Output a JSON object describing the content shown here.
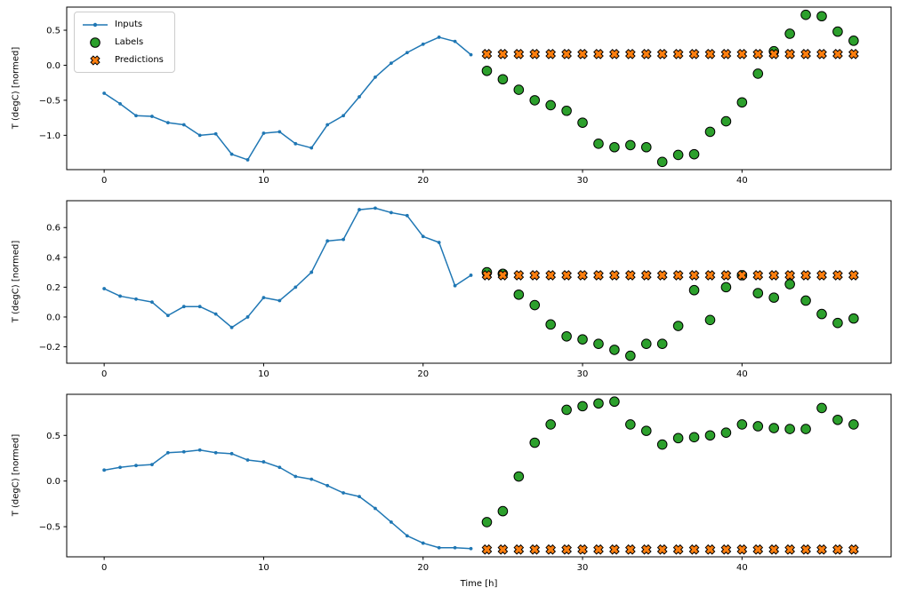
{
  "figure": {
    "background": "#ffffff",
    "xlabel": "Time [h]",
    "ylabel": "T (degC) [normed]",
    "axis_color": "#000000",
    "legend": {
      "position": "upper-left-of-first-subplot",
      "items": [
        {
          "label": "Inputs",
          "type": "line",
          "color": "#1f77b4"
        },
        {
          "label": "Labels",
          "type": "circle",
          "color": "#2ca02c"
        },
        {
          "label": "Predictions",
          "type": "x",
          "color": "#ff7f0e"
        }
      ]
    }
  },
  "chart_data": [
    {
      "type": "line",
      "subplot": 1,
      "ylabel": "T (degC) [normed]",
      "xlim": [
        -2.35,
        49.35
      ],
      "ylim": [
        -1.49,
        0.83
      ],
      "xticks": [
        0,
        10,
        20,
        30,
        40
      ],
      "xtick_labels": [
        "0",
        "10",
        "20",
        "30",
        "40"
      ],
      "yticks": [
        0.5,
        0.0,
        -0.5,
        -1.0
      ],
      "ytick_labels": [
        "0.5",
        "0.0",
        "−0.5",
        "−1.0"
      ],
      "grid": false,
      "series": [
        {
          "name": "Inputs",
          "type": "line_marker",
          "color": "#1f77b4",
          "x": [
            0,
            1,
            2,
            3,
            4,
            5,
            6,
            7,
            8,
            9,
            10,
            11,
            12,
            13,
            14,
            15,
            16,
            17,
            18,
            19,
            20,
            21,
            22,
            23
          ],
          "values": [
            -0.4,
            -0.55,
            -0.72,
            -0.73,
            -0.82,
            -0.85,
            -1.0,
            -0.98,
            -1.27,
            -1.35,
            -0.97,
            -0.95,
            -1.12,
            -1.18,
            -0.85,
            -0.72,
            -0.45,
            -0.17,
            0.03,
            0.18,
            0.3,
            0.4,
            0.34,
            0.15
          ]
        },
        {
          "name": "Labels",
          "type": "scatter_circle",
          "color": "#2ca02c",
          "x": [
            24,
            25,
            26,
            27,
            28,
            29,
            30,
            31,
            32,
            33,
            34,
            35,
            36,
            37,
            38,
            39,
            40,
            41,
            42,
            43,
            44,
            45,
            46,
            47
          ],
          "values": [
            -0.08,
            -0.2,
            -0.35,
            -0.5,
            -0.57,
            -0.65,
            -0.82,
            -1.12,
            -1.17,
            -1.14,
            -1.17,
            -1.38,
            -1.28,
            -1.27,
            -0.95,
            -0.8,
            -0.53,
            -0.12,
            0.2,
            0.45,
            0.72,
            0.7,
            0.48,
            0.35
          ]
        },
        {
          "name": "Predictions",
          "type": "scatter_x",
          "color": "#ff7f0e",
          "x": [
            24,
            25,
            26,
            27,
            28,
            29,
            30,
            31,
            32,
            33,
            34,
            35,
            36,
            37,
            38,
            39,
            40,
            41,
            42,
            43,
            44,
            45,
            46,
            47
          ],
          "values": [
            0.16,
            0.16,
            0.16,
            0.16,
            0.16,
            0.16,
            0.16,
            0.16,
            0.16,
            0.16,
            0.16,
            0.16,
            0.16,
            0.16,
            0.16,
            0.16,
            0.16,
            0.16,
            0.16,
            0.16,
            0.16,
            0.16,
            0.16,
            0.16
          ]
        }
      ]
    },
    {
      "type": "line",
      "subplot": 2,
      "ylabel": "T (degC) [normed]",
      "xlim": [
        -2.35,
        49.35
      ],
      "ylim": [
        -0.31,
        0.78
      ],
      "xticks": [
        0,
        10,
        20,
        30,
        40
      ],
      "xtick_labels": [
        "0",
        "10",
        "20",
        "30",
        "40"
      ],
      "yticks": [
        0.6,
        0.4,
        0.2,
        0.0,
        -0.2
      ],
      "ytick_labels": [
        "0.6",
        "0.4",
        "0.2",
        "0.0",
        "−0.2"
      ],
      "grid": false,
      "series": [
        {
          "name": "Inputs",
          "type": "line_marker",
          "color": "#1f77b4",
          "x": [
            0,
            1,
            2,
            3,
            4,
            5,
            6,
            7,
            8,
            9,
            10,
            11,
            12,
            13,
            14,
            15,
            16,
            17,
            18,
            19,
            20,
            21,
            22,
            23
          ],
          "values": [
            0.19,
            0.14,
            0.12,
            0.1,
            0.01,
            0.07,
            0.07,
            0.02,
            -0.07,
            0.0,
            0.13,
            0.11,
            0.2,
            0.3,
            0.51,
            0.52,
            0.72,
            0.73,
            0.7,
            0.68,
            0.54,
            0.5,
            0.21,
            0.28
          ]
        },
        {
          "name": "Labels",
          "type": "scatter_circle",
          "color": "#2ca02c",
          "x": [
            24,
            25,
            26,
            27,
            28,
            29,
            30,
            31,
            32,
            33,
            34,
            35,
            36,
            37,
            38,
            39,
            40,
            41,
            42,
            43,
            44,
            45,
            46,
            47
          ],
          "values": [
            0.3,
            0.29,
            0.15,
            0.08,
            -0.05,
            -0.13,
            -0.15,
            -0.18,
            -0.22,
            -0.26,
            -0.18,
            -0.18,
            -0.06,
            0.18,
            -0.02,
            0.2,
            0.28,
            0.16,
            0.13,
            0.22,
            0.11,
            0.02,
            -0.04,
            -0.01
          ]
        },
        {
          "name": "Predictions",
          "type": "scatter_x",
          "color": "#ff7f0e",
          "x": [
            24,
            25,
            26,
            27,
            28,
            29,
            30,
            31,
            32,
            33,
            34,
            35,
            36,
            37,
            38,
            39,
            40,
            41,
            42,
            43,
            44,
            45,
            46,
            47
          ],
          "values": [
            0.28,
            0.28,
            0.28,
            0.28,
            0.28,
            0.28,
            0.28,
            0.28,
            0.28,
            0.28,
            0.28,
            0.28,
            0.28,
            0.28,
            0.28,
            0.28,
            0.28,
            0.28,
            0.28,
            0.28,
            0.28,
            0.28,
            0.28,
            0.28
          ]
        }
      ]
    },
    {
      "type": "line",
      "subplot": 3,
      "ylabel": "T (degC) [normed]",
      "xlabel": "Time [h]",
      "xlim": [
        -2.35,
        49.35
      ],
      "ylim": [
        -0.83,
        0.95
      ],
      "xticks": [
        0,
        10,
        20,
        30,
        40
      ],
      "xtick_labels": [
        "0",
        "10",
        "20",
        "30",
        "40"
      ],
      "yticks": [
        0.5,
        0.0,
        -0.5
      ],
      "ytick_labels": [
        "0.5",
        "0.0",
        "−0.5"
      ],
      "grid": false,
      "series": [
        {
          "name": "Inputs",
          "type": "line_marker",
          "color": "#1f77b4",
          "x": [
            0,
            1,
            2,
            3,
            4,
            5,
            6,
            7,
            8,
            9,
            10,
            11,
            12,
            13,
            14,
            15,
            16,
            17,
            18,
            19,
            20,
            21,
            22,
            23
          ],
          "values": [
            0.12,
            0.15,
            0.17,
            0.18,
            0.31,
            0.32,
            0.34,
            0.31,
            0.3,
            0.23,
            0.21,
            0.15,
            0.05,
            0.02,
            -0.05,
            -0.13,
            -0.17,
            -0.3,
            -0.45,
            -0.6,
            -0.68,
            -0.73,
            -0.73,
            -0.74
          ]
        },
        {
          "name": "Labels",
          "type": "scatter_circle",
          "color": "#2ca02c",
          "x": [
            24,
            25,
            26,
            27,
            28,
            29,
            30,
            31,
            32,
            33,
            34,
            35,
            36,
            37,
            38,
            39,
            40,
            41,
            42,
            43,
            44,
            45,
            46,
            47
          ],
          "values": [
            -0.45,
            -0.33,
            0.05,
            0.42,
            0.62,
            0.78,
            0.82,
            0.85,
            0.87,
            0.62,
            0.55,
            0.4,
            0.47,
            0.48,
            0.5,
            0.53,
            0.62,
            0.6,
            0.58,
            0.57,
            0.57,
            0.8,
            0.67,
            0.62
          ]
        },
        {
          "name": "Predictions",
          "type": "scatter_x",
          "color": "#ff7f0e",
          "x": [
            24,
            25,
            26,
            27,
            28,
            29,
            30,
            31,
            32,
            33,
            34,
            35,
            36,
            37,
            38,
            39,
            40,
            41,
            42,
            43,
            44,
            45,
            46,
            47
          ],
          "values": [
            -0.75,
            -0.75,
            -0.75,
            -0.75,
            -0.75,
            -0.75,
            -0.75,
            -0.75,
            -0.75,
            -0.75,
            -0.75,
            -0.75,
            -0.75,
            -0.75,
            -0.75,
            -0.75,
            -0.75,
            -0.75,
            -0.75,
            -0.75,
            -0.75,
            -0.75,
            -0.75,
            -0.75
          ]
        }
      ]
    }
  ]
}
